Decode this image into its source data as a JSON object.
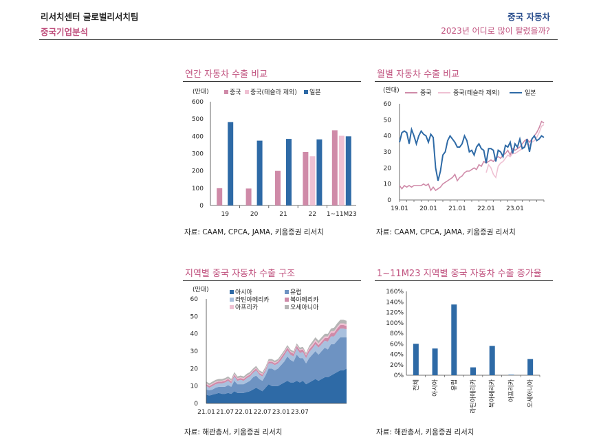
{
  "header": {
    "left_top": "리서치센터 글로벌리서치팀",
    "left_bottom": "중국기업분석",
    "right_top": "중국 자동차",
    "right_bottom": "2023년 어디로 많이 팔렸을까?"
  },
  "colors": {
    "pink": "#cf8aa8",
    "light_pink": "#efc1d3",
    "blue": "#2e6aa6",
    "mid_blue": "#6e93c2",
    "light_blue": "#a9c0de",
    "gray": "#b5b5b5",
    "accent": "#c0517e"
  },
  "panels": [
    {
      "title": "연간 자동차 수출 비교",
      "source": "자료: CAAM, CPCA, JAMA, 키움증권 리서치"
    },
    {
      "title": "월별 자동차 수출 비교",
      "source": "자료: CAAM, CPCA, JAMA, 키움증권 리서치"
    },
    {
      "title": "지역별 중국 자동차 수출 구조",
      "source": "자료: 해관총서, 키움증권 리서치"
    },
    {
      "title": "1~11M23 지역별 중국 자동차 수출 증가율",
      "source": "자료: 해관총서, 키움증권 리서치"
    }
  ],
  "chart_data": [
    {
      "type": "bar",
      "title": "연간 자동차 수출 비교",
      "unit": "(만대)",
      "categories": [
        "19",
        "20",
        "21",
        "22",
        "1~11M23"
      ],
      "series": [
        {
          "name": "중국",
          "values": [
            100,
            98,
            200,
            310,
            435
          ]
        },
        {
          "name": "중국(테슬라 제외)",
          "values": [
            null,
            null,
            null,
            285,
            403
          ]
        },
        {
          "name": "일본",
          "values": [
            482,
            375,
            385,
            382,
            400
          ]
        }
      ],
      "ylim": [
        0,
        600
      ],
      "yticks": [
        "0",
        "100",
        "200",
        "300",
        "400",
        "500",
        "600"
      ]
    },
    {
      "type": "line",
      "title": "월별 자동차 수출 비교",
      "unit": "(만대)",
      "xticks": [
        "19.01",
        "20.01",
        "21.01",
        "22.01",
        "23.01"
      ],
      "ylim": [
        0,
        60
      ],
      "yticks": [
        "0",
        "10",
        "20",
        "30",
        "40",
        "50",
        "60"
      ],
      "series": [
        {
          "name": "중국",
          "values": [
            9,
            7,
            9,
            8,
            9,
            8,
            9,
            9,
            9,
            9,
            10,
            9,
            10,
            6,
            8,
            6,
            7,
            8,
            10,
            11,
            12,
            13,
            14,
            16,
            12,
            14,
            15,
            17,
            18,
            18,
            19,
            20,
            19,
            22,
            21,
            24,
            23,
            24,
            25,
            24,
            26,
            27,
            26,
            28,
            29,
            31,
            28,
            32,
            31,
            32,
            33,
            35,
            37,
            38,
            36,
            38,
            40,
            42,
            45,
            49,
            48
          ]
        },
        {
          "name": "중국(테슬라 제외)",
          "values": [
            null,
            null,
            null,
            null,
            null,
            null,
            null,
            null,
            null,
            null,
            null,
            null,
            null,
            null,
            null,
            null,
            null,
            null,
            null,
            null,
            null,
            null,
            null,
            null,
            null,
            null,
            null,
            null,
            null,
            null,
            null,
            null,
            null,
            null,
            null,
            null,
            17,
            22,
            20,
            16,
            14,
            21,
            23,
            24,
            26,
            28,
            27,
            29,
            29,
            30,
            31,
            32,
            34,
            35,
            34,
            36,
            37,
            39,
            42,
            46,
            47
          ]
        },
        {
          "name": "일본",
          "values": [
            36,
            42,
            43,
            42,
            35,
            44,
            40,
            35,
            40,
            43,
            41,
            40,
            36,
            41,
            39,
            20,
            12,
            18,
            28,
            30,
            37,
            40,
            38,
            36,
            33,
            33,
            35,
            40,
            37,
            30,
            31,
            28,
            33,
            35,
            32,
            31,
            23,
            32,
            32,
            31,
            24,
            31,
            30,
            27,
            34,
            33,
            36,
            29,
            35,
            33,
            38,
            32,
            33,
            38,
            30,
            38,
            40,
            37,
            38,
            40,
            39
          ]
        }
      ]
    },
    {
      "type": "area",
      "title": "지역별 중국 자동차 수출 구조",
      "unit": "(만대)",
      "xticks": [
        "21.01",
        "21.07",
        "22.01",
        "22.07",
        "23.01",
        "23.07"
      ],
      "ylim": [
        0,
        60
      ],
      "yticks": [
        "0",
        "10",
        "20",
        "30",
        "40",
        "50",
        "60"
      ],
      "series": [
        {
          "name": "아시아",
          "values": [
            5,
            4.5,
            5,
            5.5,
            6,
            5.5,
            5.5,
            6,
            5.5,
            7,
            6,
            6,
            6,
            6.5,
            7,
            8,
            9,
            8,
            7,
            9,
            11,
            10,
            10,
            10,
            11,
            12,
            13,
            12,
            12,
            13,
            12,
            13,
            11,
            12,
            13,
            14,
            13,
            14,
            15,
            15,
            16,
            17,
            18,
            19,
            19,
            20
          ]
        },
        {
          "name": "유럽",
          "values": [
            3,
            3,
            3,
            3.5,
            3.5,
            4,
            4,
            4.5,
            4,
            6,
            5,
            5,
            5,
            5.5,
            6,
            7,
            7,
            6,
            6,
            7,
            9,
            10,
            9,
            10,
            11,
            12,
            14,
            13,
            12,
            15,
            14,
            13,
            12,
            14,
            15,
            16,
            15,
            16,
            17,
            16,
            18,
            17,
            18,
            19,
            19,
            18
          ]
        },
        {
          "name": "라틴아메리카",
          "values": [
            2,
            1.5,
            2,
            2,
            2,
            2,
            2.5,
            2.5,
            2,
            2.5,
            2,
            2.5,
            2,
            2.5,
            2.5,
            2.5,
            3,
            2.5,
            2.5,
            2.5,
            3,
            3,
            3,
            3,
            3,
            3.5,
            3.5,
            3,
            3,
            3.5,
            3,
            3.5,
            3,
            3.5,
            3.5,
            4,
            4,
            4,
            4,
            4.5,
            4.5,
            4.5,
            5,
            5,
            5,
            4.5
          ]
        },
        {
          "name": "북아메리카",
          "values": [
            1,
            1,
            1,
            1,
            1,
            1,
            1,
            1,
            1,
            1,
            1,
            1,
            1,
            1,
            1,
            1,
            1,
            1,
            1,
            1,
            1,
            1,
            1,
            1,
            1.5,
            1.5,
            1.5,
            1.5,
            1.5,
            1.5,
            1.5,
            1.5,
            1.5,
            1.5,
            1.5,
            1.5,
            1.5,
            1.5,
            1.5,
            2,
            2,
            2,
            2,
            2,
            2,
            2
          ]
        },
        {
          "name": "아프리카",
          "values": [
            0.5,
            0.5,
            0.5,
            0.5,
            0.5,
            0.5,
            0.5,
            0.5,
            0.5,
            0.5,
            0.5,
            0.5,
            0.5,
            0.5,
            0.5,
            0.5,
            0.5,
            0.5,
            0.5,
            0.5,
            0.5,
            0.5,
            0.5,
            0.5,
            0.5,
            0.5,
            0.5,
            0.5,
            0.5,
            0.5,
            0.5,
            0.5,
            0.5,
            1,
            1,
            1,
            1,
            1,
            1,
            1,
            1,
            1,
            1,
            1,
            1,
            1
          ]
        },
        {
          "name": "오세아니아",
          "values": [
            1,
            1,
            1,
            1,
            1,
            1,
            1,
            1,
            1,
            1,
            1,
            1,
            1,
            1,
            1,
            1,
            1,
            1,
            1,
            1,
            1,
            1,
            1,
            1,
            1,
            1,
            1,
            1,
            1,
            1,
            1,
            1,
            1,
            1,
            1.5,
            1.5,
            1.5,
            1.5,
            1.5,
            1.5,
            1.5,
            2,
            2,
            2,
            2,
            2
          ]
        }
      ]
    },
    {
      "type": "bar",
      "title": "1~11M23 지역별 중국 자동차 수출 증가율",
      "categories": [
        "전체",
        "아시아",
        "유럽",
        "라틴아메리카",
        "북아메리카",
        "아프리카",
        "오세아니아"
      ],
      "values": [
        60,
        51,
        135,
        15,
        56,
        1,
        31
      ],
      "ylim": [
        0,
        160
      ],
      "yticks": [
        "0%",
        "20%",
        "40%",
        "60%",
        "80%",
        "100%",
        "120%",
        "140%",
        "160%"
      ]
    }
  ]
}
